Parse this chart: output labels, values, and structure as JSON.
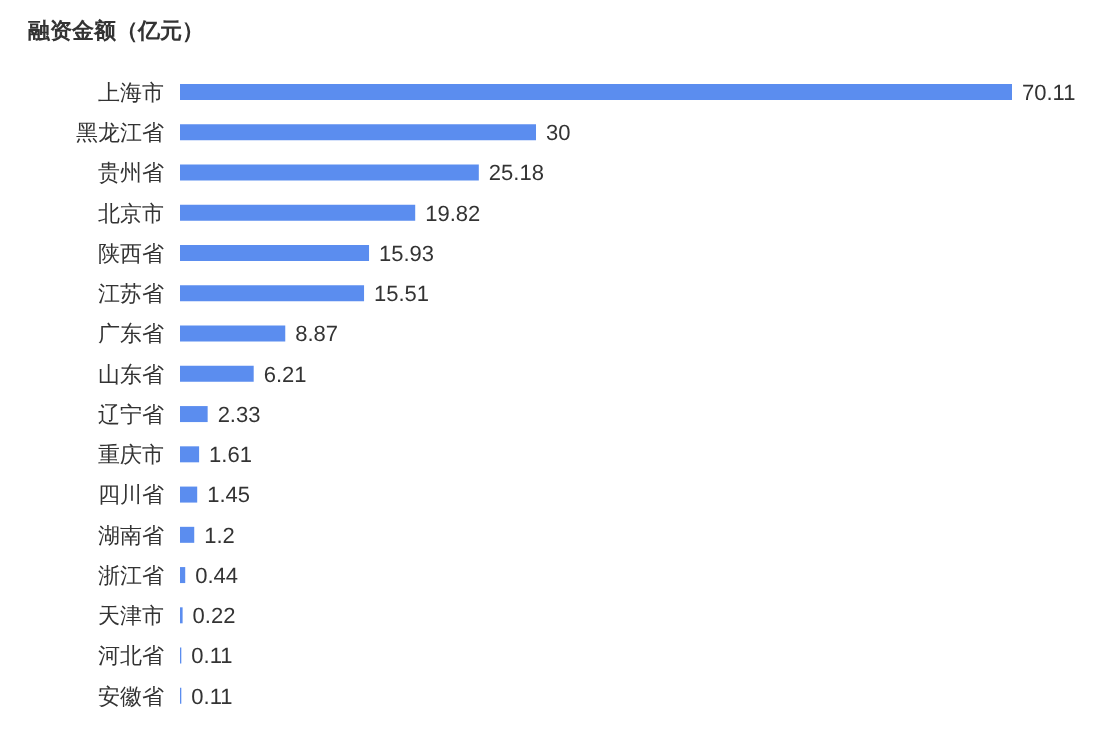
{
  "chart_data": {
    "type": "bar",
    "orientation": "horizontal",
    "title": "融资金额（亿元）",
    "categories": [
      "上海市",
      "黑龙江省",
      "贵州省",
      "北京市",
      "陕西省",
      "江苏省",
      "广东省",
      "山东省",
      "辽宁省",
      "重庆市",
      "四川省",
      "湖南省",
      "浙江省",
      "天津市",
      "河北省",
      "安徽省"
    ],
    "values": [
      70.11,
      30,
      25.18,
      19.82,
      15.93,
      15.51,
      8.87,
      6.21,
      2.33,
      1.61,
      1.45,
      1.2,
      0.44,
      0.22,
      0.11,
      0.11
    ],
    "color": "#5b8def",
    "data_labels": true
  }
}
